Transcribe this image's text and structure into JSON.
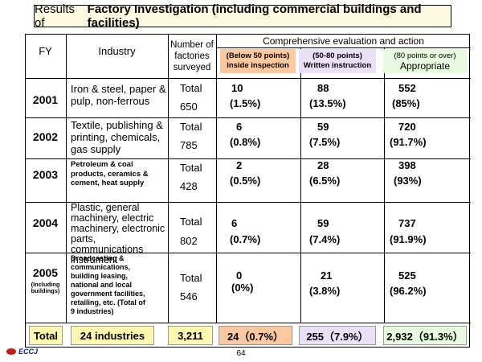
{
  "title": {
    "prefix": "Results of",
    "bold": "Factory Investigation (including commercial buildings and facilities)"
  },
  "headers": {
    "fy": "FY",
    "industry": "Industry",
    "number_lines": [
      "Number of",
      "factories",
      "surveyed"
    ],
    "evaluation": "Comprehensive evaluation and action",
    "below": [
      "(Below 50 points)",
      "Inside inspection"
    ],
    "mid": [
      "(50-80 points)",
      "Written instruction"
    ],
    "appropriate": [
      "(80 points or over)",
      "Appropriate"
    ]
  },
  "rows": [
    {
      "fy": "2001",
      "industry": [
        "Iron & steel, paper &",
        "pulp, non-ferrous"
      ],
      "total_label": "Total",
      "surveyed": "650",
      "below": "10",
      "below_pct": "(1.5%)",
      "mid": "88",
      "mid_pct": "(13.5%)",
      "appr": "552",
      "appr_pct": "(85%)"
    },
    {
      "fy": "2002",
      "industry": [
        "Textile, publishing &",
        "printing, chemicals,",
        "gas supply"
      ],
      "total_label": "Total",
      "surveyed": "785",
      "below": "6",
      "below_pct": "(0.8%)",
      "mid": "59",
      "mid_pct": "(7.5%)",
      "appr": "720",
      "appr_pct": "(91.7%)"
    },
    {
      "fy": "2003",
      "industry": [
        "Petroleum & coal",
        "products, ceramics &",
        "cement, heat supply"
      ],
      "total_label": "Total",
      "surveyed": "428",
      "below": "2",
      "below_pct": "(0.5%)",
      "mid": "28",
      "mid_pct": "(6.5%)",
      "appr": "398",
      "appr_pct": "(93%)"
    },
    {
      "fy": "2004",
      "industry": [
        "Plastic, general",
        "machinery, electric",
        "machinery, electronic",
        "parts, communications",
        "instrument"
      ],
      "total_label": "Total",
      "surveyed": "802",
      "below": "6",
      "below_pct": "(0.7%)",
      "mid": "59",
      "mid_pct": "(7.4%)",
      "appr": "737",
      "appr_pct": "(91.9%)"
    },
    {
      "fy": "2005",
      "fy_note": [
        "(Including",
        "buildings)"
      ],
      "industry": [
        "Broadcasting &",
        "communications,",
        "building leasing,",
        "national and local",
        "government facilities,",
        "retailing, etc. (Total of",
        "9 industries)"
      ],
      "total_label": "Total",
      "surveyed": "546",
      "below": "0",
      "below_pct": "(0%)",
      "mid": "21",
      "mid_pct": "(3.8%)",
      "appr": "525",
      "appr_pct": "(96.2%)"
    }
  ],
  "totals": {
    "label": "Total",
    "industries": "24 industries",
    "surveyed": "3,211",
    "below": "24（0.7%）",
    "mid": "255（7.9%）",
    "appr": "2,932（91.3%）"
  },
  "colors": {
    "title_bg": "#fff8e0",
    "total_yellow": "#fff8b0",
    "below": "#fbc8a0",
    "mid": "#ece0f8",
    "appr": "#e6fbe0"
  },
  "footer": {
    "logo_text": "ECCJ",
    "page": "64"
  }
}
